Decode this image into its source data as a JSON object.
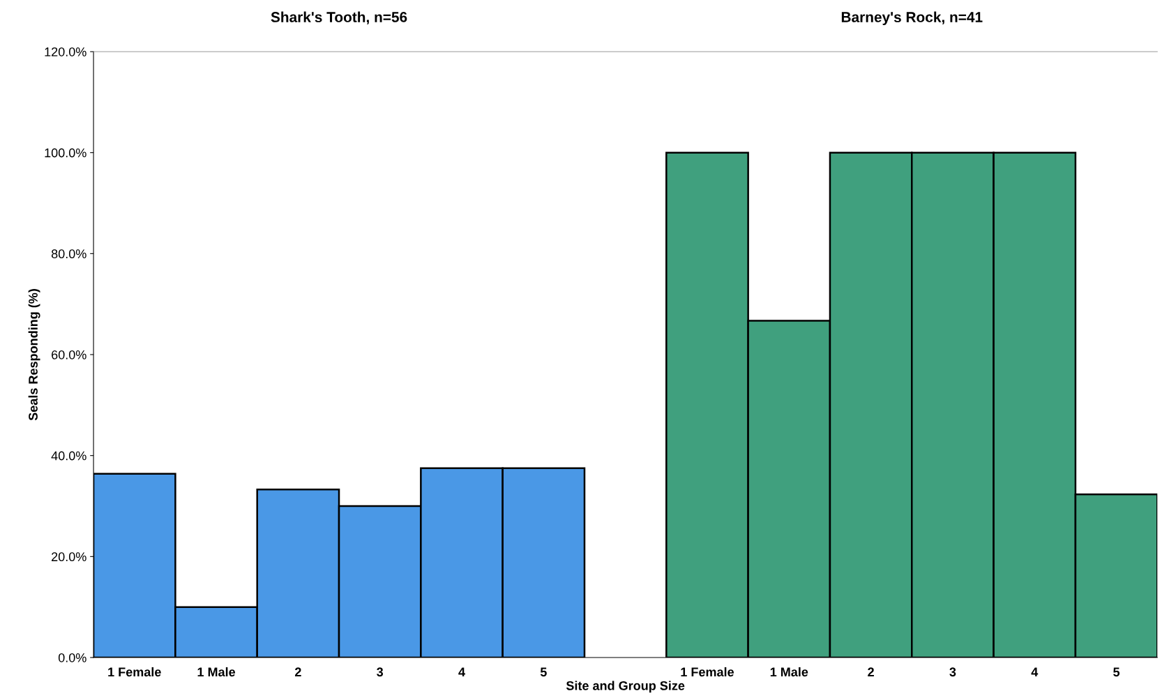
{
  "chart_data": {
    "type": "bar",
    "ylabel": "Seals Responding (%)",
    "xlabel": "Site and Group Size",
    "categories": [
      "1 Female",
      "1 Male",
      "2",
      "3",
      "4",
      "5",
      null,
      "1 Female",
      "1 Male",
      "2",
      "3",
      "4",
      "5"
    ],
    "values": [
      36.4,
      10,
      33.3,
      30,
      37.5,
      37.5,
      null,
      100,
      66.7,
      100,
      100,
      100,
      32.3
    ],
    "colors": [
      "#4a98e6",
      "#4a98e6",
      "#4a98e6",
      "#4a98e6",
      "#4a98e6",
      "#4a98e6",
      null,
      "#40a07e",
      "#40a07e",
      "#40a07e",
      "#40a07e",
      "#40a07e",
      "#40a07e"
    ],
    "annotations": [
      "Shark's Tooth, n=56",
      "Barney's Rock, n=41"
    ],
    "ylim": [
      0,
      120
    ],
    "yticks": [
      {
        "value": 0,
        "label": "0.0%"
      },
      {
        "value": 20,
        "label": "20.0%"
      },
      {
        "value": 40,
        "label": "40.0%"
      },
      {
        "value": 60,
        "label": "60.0%"
      },
      {
        "value": 80,
        "label": "80.0%"
      },
      {
        "value": 100,
        "label": "100.0%"
      },
      {
        "value": 120,
        "label": "120.0%"
      }
    ],
    "grid": false,
    "legend": false
  }
}
